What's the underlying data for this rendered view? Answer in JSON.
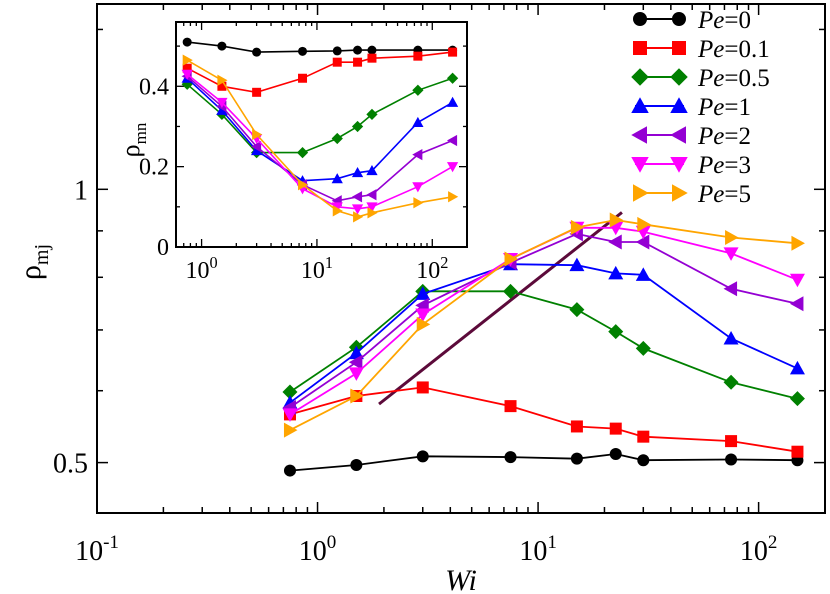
{
  "chart_data": [
    {
      "type": "line",
      "scale": "log-log",
      "xlabel": "Wi",
      "ylabel": "ρ_mj",
      "ylabel_main": "ρ",
      "ylabel_sub": "mj",
      "xlim": [
        0.1,
        200
      ],
      "ylim": [
        0.44,
        1.6
      ],
      "xticks": [
        {
          "value": 0.1,
          "base": "10",
          "exp": "-1"
        },
        {
          "value": 1,
          "base": "10",
          "exp": "0"
        },
        {
          "value": 10,
          "base": "10",
          "exp": "1"
        },
        {
          "value": 100,
          "base": "10",
          "exp": "2"
        }
      ],
      "yticks": [
        {
          "value": 0.5,
          "label": "0.5"
        },
        {
          "value": 1,
          "label": "1"
        }
      ],
      "x": [
        0.75,
        1.5,
        3,
        7.5,
        15,
        22.5,
        30,
        75,
        150
      ],
      "series": [
        {
          "name": "Pe=0",
          "color": "#000000",
          "marker": "circle",
          "values": [
            0.49,
            0.497,
            0.508,
            0.507,
            0.505,
            0.511,
            0.503,
            0.504,
            0.503
          ]
        },
        {
          "name": "Pe=0.1",
          "color": "#ff0000",
          "marker": "square",
          "values": [
            0.565,
            0.592,
            0.605,
            0.577,
            0.548,
            0.545,
            0.534,
            0.528,
            0.514
          ]
        },
        {
          "name": "Pe=0.5",
          "color": "#008000",
          "marker": "diamond",
          "values": [
            0.598,
            0.67,
            0.772,
            0.772,
            0.737,
            0.697,
            0.668,
            0.613,
            0.588
          ]
        },
        {
          "name": "Pe=1",
          "color": "#0000ff",
          "marker": "triangle-up",
          "values": [
            0.582,
            0.66,
            0.767,
            0.827,
            0.825,
            0.808,
            0.805,
            0.685,
            0.635
          ]
        },
        {
          "name": "Pe=2",
          "color": "#9400d3",
          "marker": "triangle-left",
          "values": [
            0.575,
            0.645,
            0.745,
            0.83,
            0.893,
            0.875,
            0.875,
            0.777,
            0.748
          ]
        },
        {
          "name": "Pe=3",
          "color": "#ff00ff",
          "marker": "triangle-down",
          "values": [
            0.565,
            0.627,
            0.728,
            0.838,
            0.907,
            0.907,
            0.898,
            0.85,
            0.795
          ]
        },
        {
          "name": "Pe=5",
          "color": "#ffa500",
          "marker": "triangle-right",
          "values": [
            0.543,
            0.592,
            0.71,
            0.838,
            0.908,
            0.925,
            0.915,
            0.885,
            0.872
          ]
        }
      ],
      "guide_line": {
        "color": "#5c0a3a",
        "points": [
          [
            1.9,
            0.58
          ],
          [
            24,
            0.943
          ]
        ]
      },
      "legend": {
        "position": "top-right",
        "prefix": "Pe",
        "entries": [
          "=0",
          "=0.1",
          "=0.5",
          "=1",
          "=2",
          "=3",
          "=5"
        ]
      }
    },
    {
      "type": "line",
      "scale": "log-linear",
      "role": "inset",
      "xlabel": "",
      "ylabel": "ρ_mn",
      "ylabel_main": "ρ",
      "ylabel_sub": "mn",
      "xlim": [
        0.6,
        200
      ],
      "ylim": [
        0,
        0.56
      ],
      "xticks": [
        {
          "value": 1,
          "base": "10",
          "exp": "0"
        },
        {
          "value": 10,
          "base": "10",
          "exp": "1"
        },
        {
          "value": 100,
          "base": "10",
          "exp": "2"
        }
      ],
      "yticks": [
        {
          "value": 0,
          "label": "0"
        },
        {
          "value": 0.2,
          "label": "0.2"
        },
        {
          "value": 0.4,
          "label": "0.4"
        }
      ],
      "x": [
        0.75,
        1.5,
        3,
        7.5,
        15,
        22.5,
        30,
        75,
        150
      ],
      "series": [
        {
          "name": "Pe=0",
          "color": "#000000",
          "marker": "circle",
          "values": [
            0.51,
            0.5,
            0.485,
            0.487,
            0.488,
            0.49,
            0.49,
            0.49,
            0.49
          ]
        },
        {
          "name": "Pe=0.1",
          "color": "#ff0000",
          "marker": "square",
          "values": [
            0.445,
            0.4,
            0.385,
            0.42,
            0.46,
            0.46,
            0.47,
            0.475,
            0.485
          ]
        },
        {
          "name": "Pe=0.5",
          "color": "#008000",
          "marker": "diamond",
          "values": [
            0.405,
            0.33,
            0.235,
            0.235,
            0.27,
            0.3,
            0.33,
            0.39,
            0.42
          ]
        },
        {
          "name": "Pe=1",
          "color": "#0000ff",
          "marker": "triangle-up",
          "values": [
            0.42,
            0.34,
            0.24,
            0.165,
            0.17,
            0.185,
            0.19,
            0.31,
            0.36
          ]
        },
        {
          "name": "Pe=2",
          "color": "#9400d3",
          "marker": "triangle-left",
          "values": [
            0.425,
            0.35,
            0.25,
            0.155,
            0.115,
            0.125,
            0.13,
            0.23,
            0.265
          ]
        },
        {
          "name": "Pe=3",
          "color": "#ff00ff",
          "marker": "triangle-down",
          "values": [
            0.43,
            0.36,
            0.27,
            0.145,
            0.1,
            0.095,
            0.1,
            0.15,
            0.2
          ]
        },
        {
          "name": "Pe=5",
          "color": "#ffa500",
          "marker": "triangle-right",
          "values": [
            0.465,
            0.415,
            0.28,
            0.155,
            0.09,
            0.075,
            0.085,
            0.11,
            0.125
          ]
        }
      ]
    }
  ]
}
